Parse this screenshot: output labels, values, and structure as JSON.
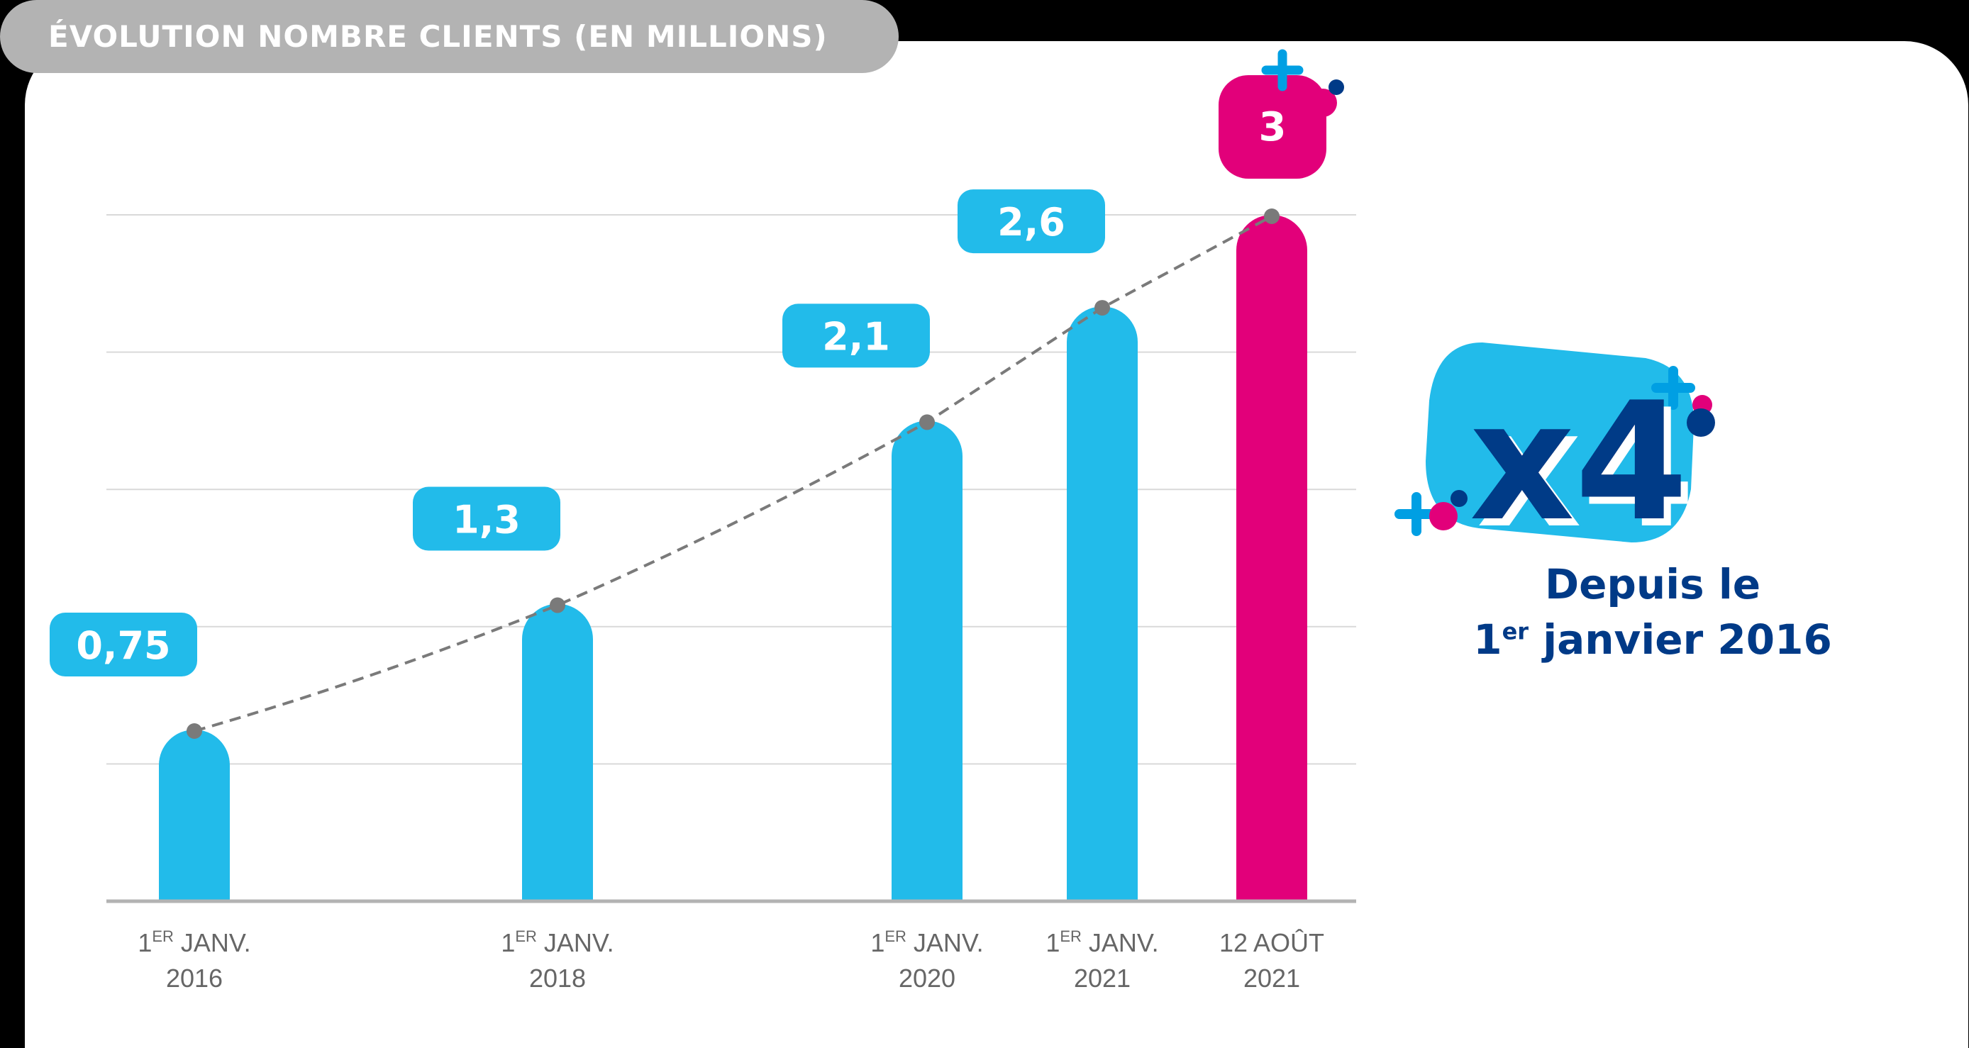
{
  "chart_data": {
    "type": "bar",
    "title": "ÉVOLUTION NOMBRE CLIENTS (EN MILLIONS)",
    "categories": [
      {
        "line1_sup": "1",
        "line1_er": "ER",
        "line1": " JANV.",
        "line2": "2016"
      },
      {
        "line1_sup": "1",
        "line1_er": "ER",
        "line1": " JANV.",
        "line2": "2018"
      },
      {
        "line1_sup": "1",
        "line1_er": "ER",
        "line1": " JANV.",
        "line2": "2020"
      },
      {
        "line1_sup": "1",
        "line1_er": "ER",
        "line1": " JANV.",
        "line2": "2021"
      },
      {
        "line1_sup": "",
        "line1_er": "",
        "line1": "12 AOÛT",
        "line2": "2021"
      }
    ],
    "values": [
      0.75,
      1.3,
      2.1,
      2.6,
      3
    ],
    "value_labels": [
      "0,75",
      "1,3",
      "2,1",
      "2,6",
      "3"
    ],
    "ylim": [
      0,
      3
    ],
    "grid": true,
    "trend_line": "dashed",
    "colors": {
      "bar": "#22bbea",
      "highlight": "#e2007a",
      "trend": "#7a7a7a",
      "axis_text": "#666666",
      "navy": "#003a87"
    }
  },
  "badge": {
    "multiplier": "x4",
    "caption_line1": "Depuis le",
    "caption_line2_num": "1",
    "caption_line2_sup": "er",
    "caption_line2_rest": " janvier 2016"
  }
}
